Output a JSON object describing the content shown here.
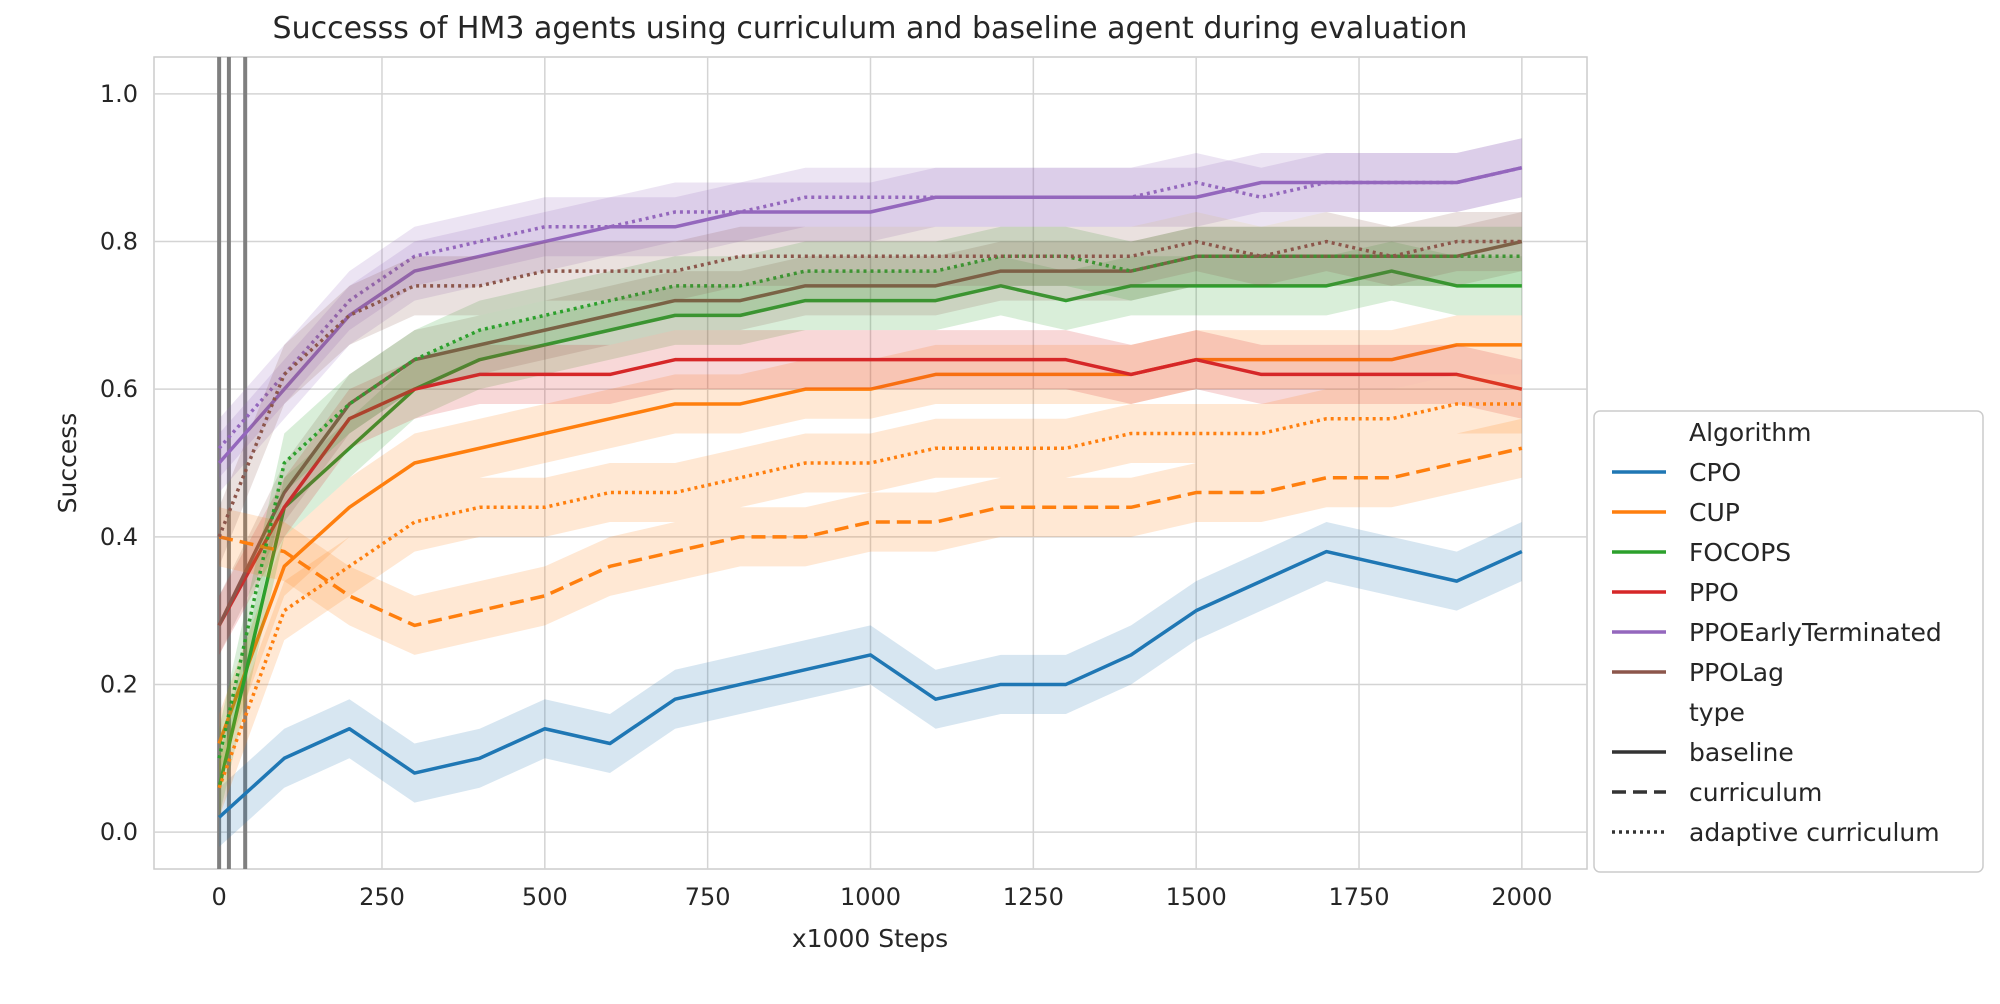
{
  "chart_data": {
    "type": "line",
    "title": "Successs of HM3 agents using curriculum and baseline agent during evaluation",
    "xlabel": "x1000 Steps",
    "ylabel": "Success",
    "xlim": [
      -100,
      2100
    ],
    "ylim": [
      -0.05,
      1.05
    ],
    "xticks": [
      0,
      250,
      500,
      750,
      1000,
      1250,
      1500,
      1750,
      2000
    ],
    "yticks": [
      0.0,
      0.2,
      0.4,
      0.6,
      0.8,
      1.0
    ],
    "xtick_labels": [
      "0",
      "250",
      "500",
      "750",
      "1000",
      "1250",
      "1500",
      "1750",
      "2000"
    ],
    "ytick_labels": [
      "0.0",
      "0.2",
      "0.4",
      "0.6",
      "0.8",
      "1.0"
    ],
    "grid": true,
    "legend_position": "center-right outside",
    "vertical_markers": [
      0,
      15,
      40
    ],
    "legend": {
      "algorithm_title": "Algorithm",
      "type_title": "type",
      "types": [
        {
          "label": "baseline",
          "dash": "solid"
        },
        {
          "label": "curriculum",
          "dash": "dashed"
        },
        {
          "label": "adaptive curriculum",
          "dash": "dotted"
        }
      ]
    },
    "series": [
      {
        "name": "CPO",
        "type": "baseline",
        "color": "#1f77b4",
        "x": [
          0,
          100,
          200,
          300,
          400,
          500,
          600,
          700,
          800,
          900,
          1000,
          1100,
          1200,
          1300,
          1400,
          1500,
          1600,
          1700,
          1800,
          1900,
          2000
        ],
        "y": [
          0.02,
          0.1,
          0.14,
          0.08,
          0.1,
          0.14,
          0.12,
          0.18,
          0.2,
          0.22,
          0.24,
          0.18,
          0.2,
          0.2,
          0.24,
          0.3,
          0.34,
          0.38,
          0.36,
          0.34,
          0.38
        ]
      },
      {
        "name": "CUP",
        "type": "baseline",
        "color": "#ff7f0e",
        "x": [
          0,
          100,
          200,
          300,
          400,
          500,
          600,
          700,
          800,
          900,
          1000,
          1100,
          1200,
          1300,
          1400,
          1500,
          1600,
          1700,
          1800,
          1900,
          2000
        ],
        "y": [
          0.12,
          0.36,
          0.44,
          0.5,
          0.52,
          0.54,
          0.56,
          0.58,
          0.58,
          0.6,
          0.6,
          0.62,
          0.62,
          0.62,
          0.62,
          0.64,
          0.64,
          0.64,
          0.64,
          0.66,
          0.66
        ]
      },
      {
        "name": "FOCOPS",
        "type": "baseline",
        "color": "#2ca02c",
        "x": [
          0,
          100,
          200,
          300,
          400,
          500,
          600,
          700,
          800,
          900,
          1000,
          1100,
          1200,
          1300,
          1400,
          1500,
          1600,
          1700,
          1800,
          1900,
          2000
        ],
        "y": [
          0.06,
          0.44,
          0.52,
          0.6,
          0.64,
          0.66,
          0.68,
          0.7,
          0.7,
          0.72,
          0.72,
          0.72,
          0.74,
          0.72,
          0.74,
          0.74,
          0.74,
          0.74,
          0.76,
          0.74,
          0.74
        ]
      },
      {
        "name": "PPO",
        "type": "baseline",
        "color": "#d62728",
        "x": [
          0,
          100,
          200,
          300,
          400,
          500,
          600,
          700,
          800,
          900,
          1000,
          1100,
          1200,
          1300,
          1400,
          1500,
          1600,
          1700,
          1800,
          1900,
          2000
        ],
        "y": [
          0.28,
          0.44,
          0.56,
          0.6,
          0.62,
          0.62,
          0.62,
          0.64,
          0.64,
          0.64,
          0.64,
          0.64,
          0.64,
          0.64,
          0.62,
          0.64,
          0.62,
          0.62,
          0.62,
          0.62,
          0.6
        ]
      },
      {
        "name": "PPOEarlyTerminated",
        "type": "baseline",
        "color": "#9467bd",
        "x": [
          0,
          100,
          200,
          300,
          400,
          500,
          600,
          700,
          800,
          900,
          1000,
          1100,
          1200,
          1300,
          1400,
          1500,
          1600,
          1700,
          1800,
          1900,
          2000
        ],
        "y": [
          0.5,
          0.6,
          0.7,
          0.76,
          0.78,
          0.8,
          0.82,
          0.82,
          0.84,
          0.84,
          0.84,
          0.86,
          0.86,
          0.86,
          0.86,
          0.86,
          0.88,
          0.88,
          0.88,
          0.88,
          0.9
        ]
      },
      {
        "name": "PPOLag",
        "type": "baseline",
        "color": "#8c564b",
        "x": [
          0,
          100,
          200,
          300,
          400,
          500,
          600,
          700,
          800,
          900,
          1000,
          1100,
          1200,
          1300,
          1400,
          1500,
          1600,
          1700,
          1800,
          1900,
          2000
        ],
        "y": [
          0.28,
          0.46,
          0.58,
          0.64,
          0.66,
          0.68,
          0.7,
          0.72,
          0.72,
          0.74,
          0.74,
          0.74,
          0.76,
          0.76,
          0.76,
          0.78,
          0.78,
          0.78,
          0.78,
          0.78,
          0.8
        ]
      },
      {
        "name": "CUP",
        "type": "curriculum",
        "color": "#ff7f0e",
        "x": [
          0,
          100,
          200,
          300,
          400,
          500,
          600,
          700,
          800,
          900,
          1000,
          1100,
          1200,
          1300,
          1400,
          1500,
          1600,
          1700,
          1800,
          1900,
          2000
        ],
        "y": [
          0.4,
          0.38,
          0.32,
          0.28,
          0.3,
          0.32,
          0.36,
          0.38,
          0.4,
          0.4,
          0.42,
          0.42,
          0.44,
          0.44,
          0.44,
          0.46,
          0.46,
          0.48,
          0.48,
          0.5,
          0.52
        ]
      },
      {
        "name": "CUP",
        "type": "adaptive curriculum",
        "color": "#ff7f0e",
        "x": [
          0,
          100,
          200,
          300,
          400,
          500,
          600,
          700,
          800,
          900,
          1000,
          1100,
          1200,
          1300,
          1400,
          1500,
          1600,
          1700,
          1800,
          1900,
          2000
        ],
        "y": [
          0.06,
          0.3,
          0.36,
          0.42,
          0.44,
          0.44,
          0.46,
          0.46,
          0.48,
          0.5,
          0.5,
          0.52,
          0.52,
          0.52,
          0.54,
          0.54,
          0.54,
          0.56,
          0.56,
          0.58,
          0.58
        ]
      },
      {
        "name": "FOCOPS",
        "type": "adaptive curriculum",
        "color": "#2ca02c",
        "x": [
          0,
          100,
          200,
          300,
          400,
          500,
          600,
          700,
          800,
          900,
          1000,
          1100,
          1200,
          1300,
          1400,
          1500,
          1600,
          1700,
          1800,
          1900,
          2000
        ],
        "y": [
          0.1,
          0.5,
          0.58,
          0.64,
          0.68,
          0.7,
          0.72,
          0.74,
          0.74,
          0.76,
          0.76,
          0.76,
          0.78,
          0.78,
          0.76,
          0.78,
          0.78,
          0.78,
          0.78,
          0.78,
          0.78
        ]
      },
      {
        "name": "PPOEarlyTerminated",
        "type": "adaptive curriculum",
        "color": "#9467bd",
        "x": [
          0,
          100,
          200,
          300,
          400,
          500,
          600,
          700,
          800,
          900,
          1000,
          1100,
          1200,
          1300,
          1400,
          1500,
          1600,
          1700,
          1800,
          1900,
          2000
        ],
        "y": [
          0.52,
          0.62,
          0.72,
          0.78,
          0.8,
          0.82,
          0.82,
          0.84,
          0.84,
          0.86,
          0.86,
          0.86,
          0.86,
          0.86,
          0.86,
          0.88,
          0.86,
          0.88,
          0.88,
          0.88,
          0.9
        ]
      },
      {
        "name": "PPOLag",
        "type": "adaptive curriculum",
        "color": "#8c564b",
        "x": [
          0,
          100,
          200,
          300,
          400,
          500,
          600,
          700,
          800,
          900,
          1000,
          1100,
          1200,
          1300,
          1400,
          1500,
          1600,
          1700,
          1800,
          1900,
          2000
        ],
        "y": [
          0.4,
          0.62,
          0.7,
          0.74,
          0.74,
          0.76,
          0.76,
          0.76,
          0.78,
          0.78,
          0.78,
          0.78,
          0.78,
          0.78,
          0.78,
          0.8,
          0.78,
          0.8,
          0.78,
          0.8,
          0.8
        ]
      }
    ]
  }
}
